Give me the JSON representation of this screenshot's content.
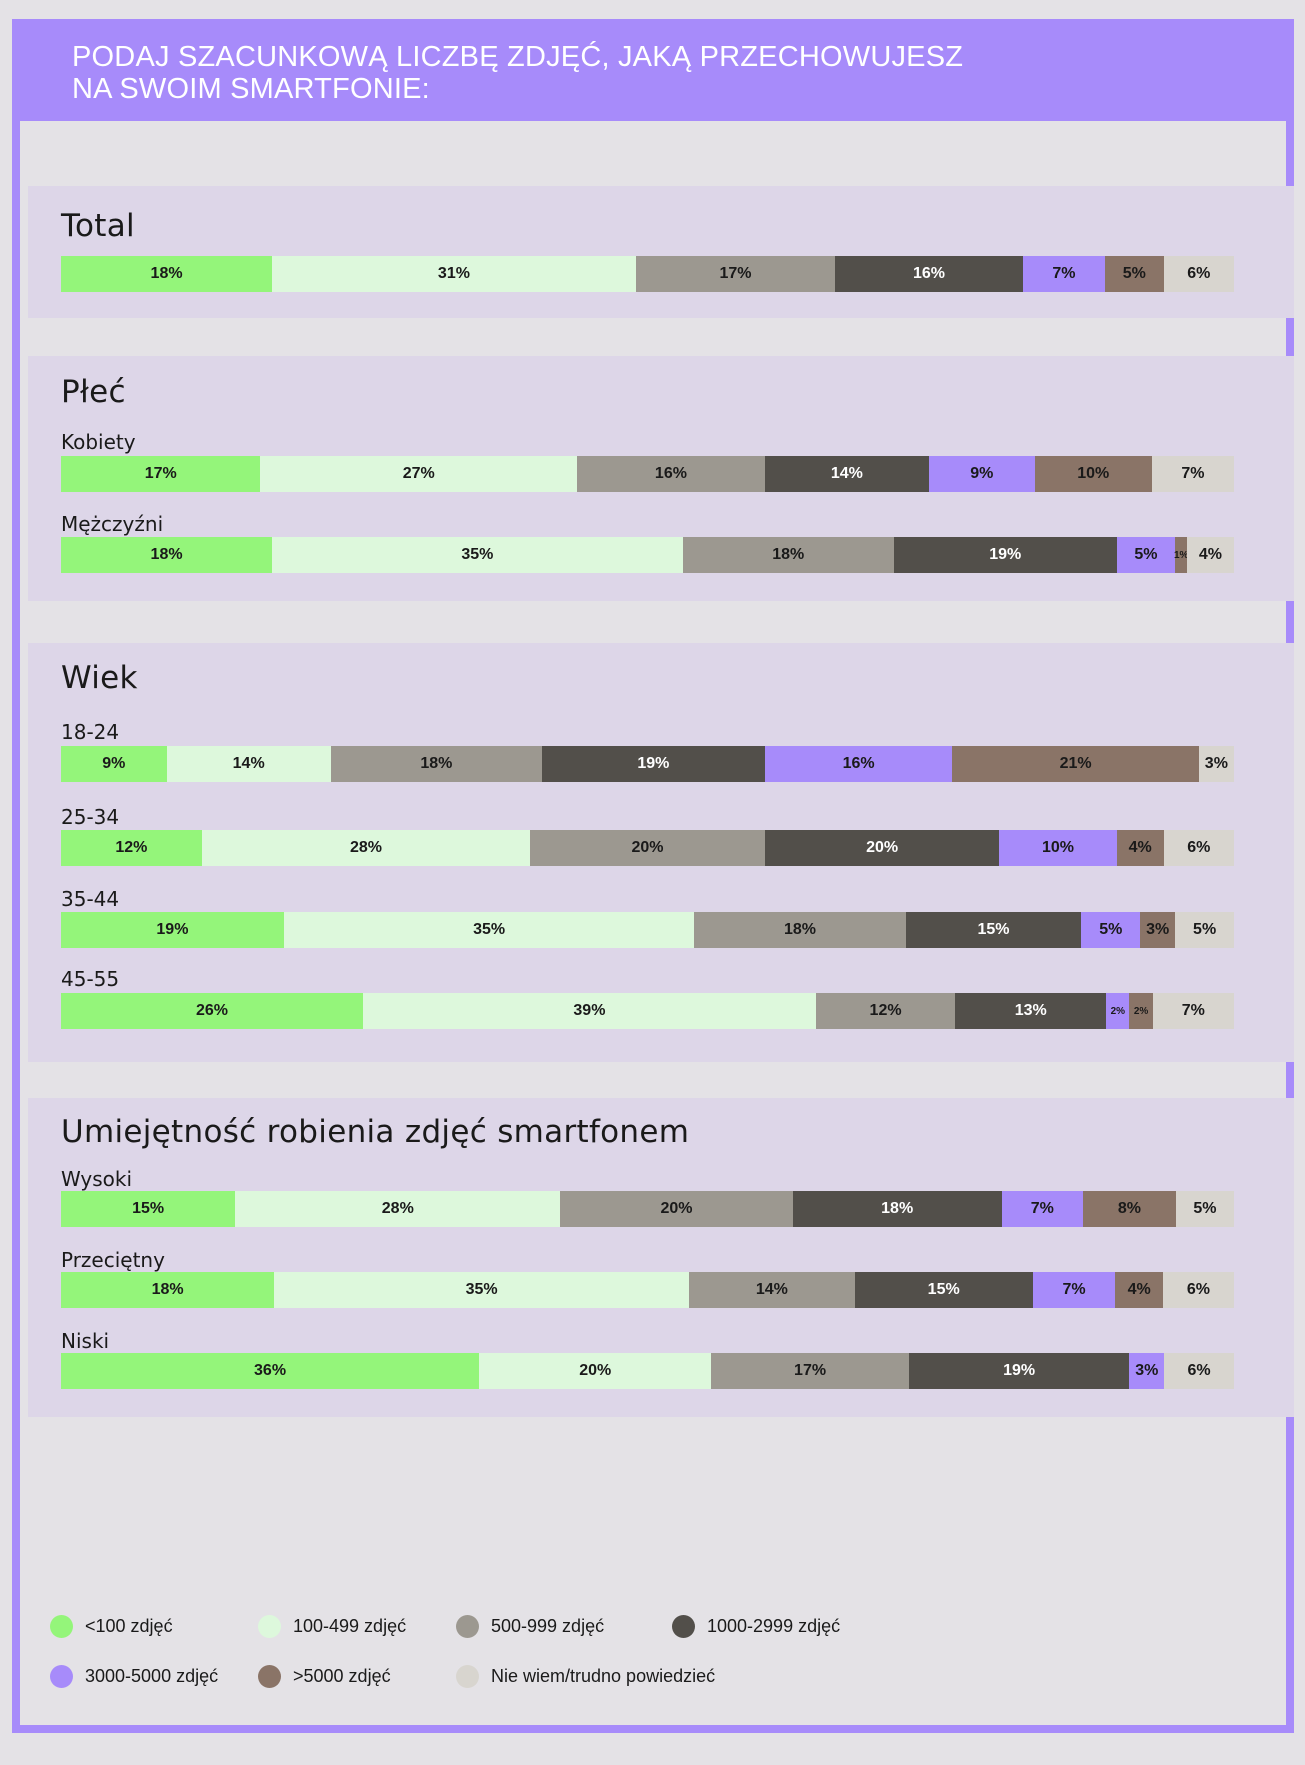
{
  "header": {
    "title_line1": "PODAJ SZACUNKOWĄ LICZBĘ ZDJĘĆ, JAKĄ PRZECHOWUJESZ",
    "title_line2": "NA SWOIM SMARTFONIE:"
  },
  "colors": {
    "frame": "#a78bfa",
    "section_bg": "#ddd6e8",
    "page_bg": "#e4e2e6",
    "categories": [
      "#94f57a",
      "#ddf8dc",
      "#9c9890",
      "#524f4a",
      "#a78bfa",
      "#8a7467",
      "#d8d5cf"
    ],
    "label_colors": [
      "#1a1a1a",
      "#1a1a1a",
      "#1a1a1a",
      "#ffffff",
      "#1a1a1a",
      "#1a1a1a",
      "#1a1a1a"
    ]
  },
  "chart_data": {
    "type": "bar",
    "stacked": true,
    "orientation": "horizontal",
    "title": "PODAJ SZACUNKOWĄ LICZBĘ ZDJĘĆ, JAKĄ PRZECHOWUJESZ NA SWOIM SMARTFONIE:",
    "legend": {
      "placement": "bottom",
      "items": [
        "<100 zdjęć",
        "100-499 zdjęć",
        "500-999 zdjęć",
        "1000-2999 zdjęć",
        "3000-5000 zdjęć",
        ">5000 zdjęć",
        "Nie wiem/trudno powiedzieć"
      ]
    },
    "groups": [
      {
        "title": "Total",
        "rows": [
          {
            "label": "",
            "values": [
              18,
              31,
              17,
              16,
              7,
              5,
              6
            ]
          }
        ]
      },
      {
        "title": "Płeć",
        "rows": [
          {
            "label": "Kobiety",
            "values": [
              17,
              27,
              16,
              14,
              9,
              10,
              7
            ]
          },
          {
            "label": "Mężczyźni",
            "values": [
              18,
              35,
              18,
              19,
              5,
              1,
              4
            ]
          }
        ]
      },
      {
        "title": "Wiek",
        "rows": [
          {
            "label": "18-24",
            "values": [
              9,
              14,
              18,
              19,
              16,
              21,
              3
            ]
          },
          {
            "label": "25-34",
            "values": [
              12,
              28,
              20,
              20,
              10,
              4,
              6
            ]
          },
          {
            "label": "35-44",
            "values": [
              19,
              35,
              18,
              15,
              5,
              3,
              5
            ]
          },
          {
            "label": "45-55",
            "values": [
              26,
              39,
              12,
              13,
              2,
              2,
              7
            ]
          }
        ]
      },
      {
        "title": "Umiejętność robienia zdjęć smartfonem",
        "rows": [
          {
            "label": "Wysoki",
            "values": [
              15,
              28,
              20,
              18,
              7,
              8,
              5
            ]
          },
          {
            "label": "Przeciętny",
            "values": [
              18,
              35,
              14,
              15,
              7,
              4,
              6
            ]
          },
          {
            "label": "Niski",
            "values": [
              36,
              20,
              17,
              19,
              3,
              0,
              6
            ]
          }
        ]
      }
    ]
  }
}
